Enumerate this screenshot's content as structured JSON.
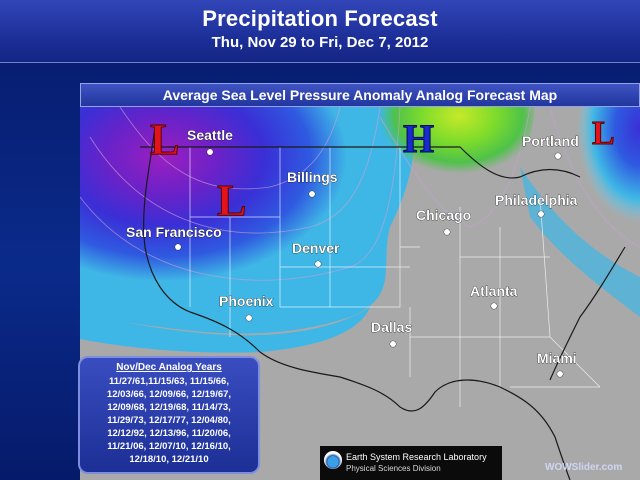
{
  "header": {
    "title": "Precipitation Forecast",
    "subtitle": "Thu, Nov 29 to Fri, Dec 7, 2012"
  },
  "map": {
    "title": "Average Sea Level Pressure Anomaly Analog Forecast Map",
    "cities": [
      {
        "name": "Seattle"
      },
      {
        "name": "Billings"
      },
      {
        "name": "San Francisco"
      },
      {
        "name": "Denver"
      },
      {
        "name": "Phoenix"
      },
      {
        "name": "Chicago"
      },
      {
        "name": "Philadelphia"
      },
      {
        "name": "Portland"
      },
      {
        "name": "Atlanta"
      },
      {
        "name": "Dallas"
      },
      {
        "name": "Miami"
      }
    ],
    "pressure_markers": {
      "low_1": "L",
      "low_2": "L",
      "low_3": "L",
      "high_1": "H"
    },
    "colors": {
      "low_marker": "#e0141a",
      "high_marker": "#1a2acc",
      "land": "#a9a9a9",
      "anomaly_strong_low": "#8a1db3",
      "anomaly_low": "#2b2fd1",
      "anomaly_weak_low": "#3fb7e6",
      "anomaly_high": "#7fdc2a"
    }
  },
  "legend": {
    "title": "Nov/Dec Analog Years",
    "lines": [
      "11/27/61,11/15/63, 11/15/66,",
      "12/03/66, 12/09/66, 12/19/67,",
      "12/09/68, 12/19/68, 11/14/73,",
      "11/29/73, 12/17/77, 12/04/80,",
      "12/12/92, 12/13/96, 11/20/06,",
      "11/21/06, 12/07/10, 12/16/10,",
      "12/18/10, 12/21/10"
    ]
  },
  "credit": {
    "line1": "Earth System Research Laboratory",
    "line2": "Physical Sciences Division"
  },
  "watermark": "WOWSlider.com"
}
